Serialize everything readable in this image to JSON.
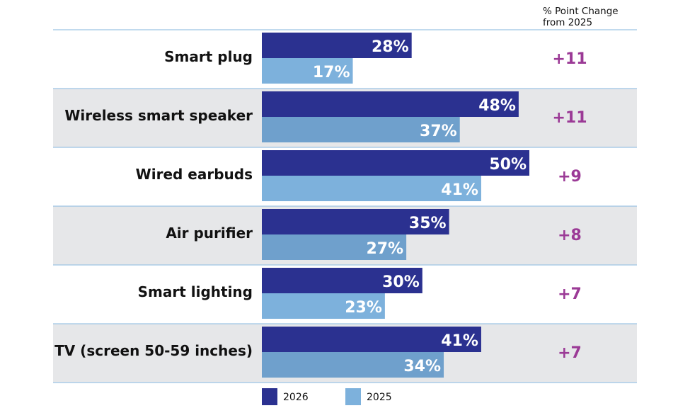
{
  "chart_data": {
    "type": "bar",
    "orientation": "horizontal",
    "categories": [
      "Smart plug",
      "Wireless smart speaker",
      "Wired earbuds",
      "Air purifier",
      "Smart lighting",
      "TV (screen 50-59 inches)"
    ],
    "series": [
      {
        "name": "2026",
        "values": [
          28,
          48,
          50,
          35,
          30,
          41
        ],
        "color": "#2b3190"
      },
      {
        "name": "2025",
        "values": [
          17,
          37,
          41,
          27,
          23,
          34
        ],
        "color": "#7db1dc"
      }
    ],
    "value_suffix": "%",
    "change_header_line1": "% Point Change",
    "change_header_line2": "from 2025",
    "changes": [
      "+11",
      "+11",
      "+9",
      "+8",
      "+7",
      "+7"
    ],
    "change_color": "#9b3a96",
    "band_color": "#e6e7e9",
    "divider_color": "#9cc4e4",
    "band_2025_color": "#6fa0cc",
    "xlim": [
      0,
      100
    ],
    "legend_position": "bottom"
  }
}
